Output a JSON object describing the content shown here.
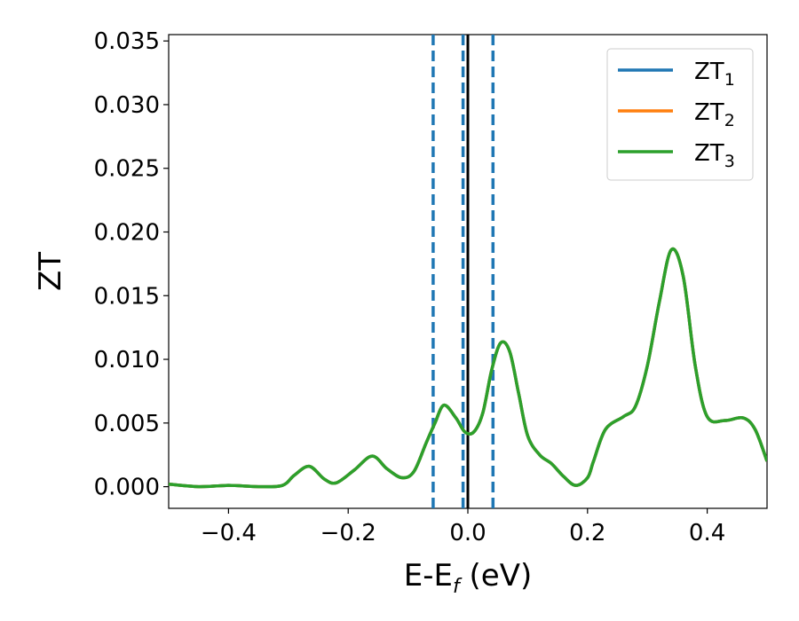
{
  "chart_data": {
    "type": "line",
    "xlabel": "E-E",
    "xlabel_subscript": "f",
    "xlabel_suffix": " (eV)",
    "ylabel": "ZT",
    "xlim": [
      -0.5,
      0.5
    ],
    "ylim": [
      -0.0017,
      0.0355
    ],
    "x_ticks": [
      -0.4,
      -0.2,
      0.0,
      0.2,
      0.4
    ],
    "x_tick_labels": [
      "−0.4",
      "−0.2",
      "0.0",
      "0.2",
      "0.4"
    ],
    "y_ticks": [
      0.0,
      0.005,
      0.01,
      0.015,
      0.02,
      0.025,
      0.03,
      0.035
    ],
    "y_tick_labels": [
      "0.000",
      "0.005",
      "0.010",
      "0.015",
      "0.020",
      "0.025",
      "0.030",
      "0.035"
    ],
    "grid": false,
    "legend_position": "top-right",
    "colors": {
      "zt1": "#1f77b4",
      "zt2": "#ff7f0e",
      "zt3": "#2ca02c",
      "fermi_line": "#000000",
      "dashed": "#1f77b4"
    },
    "legend": [
      {
        "base": "ZT",
        "sub": "1",
        "color": "#1f77b4"
      },
      {
        "base": "ZT",
        "sub": "2",
        "color": "#ff7f0e"
      },
      {
        "base": "ZT",
        "sub": "3",
        "color": "#2ca02c"
      }
    ],
    "vertical_lines": {
      "solid": [
        0.0
      ],
      "dashed": [
        -0.058,
        -0.008,
        0.042
      ]
    },
    "series": [
      {
        "name": "ZT1",
        "color": "#1f77b4",
        "x": [
          -0.5,
          -0.45,
          -0.4,
          -0.35,
          -0.31,
          -0.29,
          -0.265,
          -0.24,
          -0.22,
          -0.19,
          -0.16,
          -0.135,
          -0.11,
          -0.09,
          -0.07,
          -0.055,
          -0.04,
          -0.02,
          -0.005,
          0.01,
          0.025,
          0.04,
          0.055,
          0.07,
          0.085,
          0.1,
          0.12,
          0.14,
          0.16,
          0.18,
          0.2,
          0.21,
          0.23,
          0.26,
          0.28,
          0.3,
          0.32,
          0.34,
          0.36,
          0.38,
          0.4,
          0.43,
          0.46,
          0.48,
          0.5
        ],
        "y": [
          0.0002,
          0.0,
          0.0001,
          0.0,
          0.0001,
          0.0009,
          0.0016,
          0.0006,
          0.0003,
          0.0013,
          0.0024,
          0.0014,
          0.0007,
          0.0012,
          0.0034,
          0.005,
          0.0064,
          0.0054,
          0.0043,
          0.0043,
          0.0058,
          0.0092,
          0.0113,
          0.0106,
          0.0073,
          0.004,
          0.0025,
          0.0018,
          0.0008,
          0.0001,
          0.0007,
          0.002,
          0.0045,
          0.0055,
          0.0063,
          0.0095,
          0.0145,
          0.0186,
          0.0165,
          0.0095,
          0.0055,
          0.0052,
          0.0054,
          0.0045,
          0.002
        ]
      },
      {
        "name": "ZT2",
        "color": "#ff7f0e",
        "x": [
          -0.5,
          -0.45,
          -0.4,
          -0.35,
          -0.31,
          -0.29,
          -0.265,
          -0.24,
          -0.22,
          -0.19,
          -0.16,
          -0.135,
          -0.11,
          -0.09,
          -0.07,
          -0.055,
          -0.04,
          -0.02,
          -0.005,
          0.01,
          0.025,
          0.04,
          0.055,
          0.07,
          0.085,
          0.1,
          0.12,
          0.14,
          0.16,
          0.18,
          0.2,
          0.21,
          0.23,
          0.26,
          0.28,
          0.3,
          0.32,
          0.34,
          0.36,
          0.38,
          0.4,
          0.43,
          0.46,
          0.48,
          0.5
        ],
        "y": [
          0.0002,
          0.0,
          0.0001,
          0.0,
          0.0001,
          0.0009,
          0.0016,
          0.0006,
          0.0003,
          0.0013,
          0.0024,
          0.0014,
          0.0007,
          0.0012,
          0.0034,
          0.005,
          0.0064,
          0.0054,
          0.0043,
          0.0043,
          0.0058,
          0.0092,
          0.0113,
          0.0106,
          0.0073,
          0.004,
          0.0025,
          0.0018,
          0.0008,
          0.0001,
          0.0007,
          0.002,
          0.0045,
          0.0055,
          0.0063,
          0.0095,
          0.0145,
          0.0186,
          0.0165,
          0.0095,
          0.0055,
          0.0052,
          0.0054,
          0.0045,
          0.002
        ]
      },
      {
        "name": "ZT3",
        "color": "#2ca02c",
        "x": [
          -0.5,
          -0.45,
          -0.4,
          -0.35,
          -0.31,
          -0.29,
          -0.265,
          -0.24,
          -0.22,
          -0.19,
          -0.16,
          -0.135,
          -0.11,
          -0.09,
          -0.07,
          -0.055,
          -0.04,
          -0.02,
          -0.005,
          0.01,
          0.025,
          0.04,
          0.055,
          0.07,
          0.085,
          0.1,
          0.12,
          0.14,
          0.16,
          0.18,
          0.2,
          0.21,
          0.23,
          0.26,
          0.28,
          0.3,
          0.32,
          0.34,
          0.36,
          0.38,
          0.4,
          0.43,
          0.46,
          0.48,
          0.5
        ],
        "y": [
          0.0002,
          0.0,
          0.0001,
          0.0,
          0.0001,
          0.0009,
          0.0016,
          0.0006,
          0.0003,
          0.0013,
          0.0024,
          0.0014,
          0.0007,
          0.0012,
          0.0034,
          0.005,
          0.0064,
          0.0054,
          0.0043,
          0.0043,
          0.0058,
          0.0092,
          0.0113,
          0.0106,
          0.0073,
          0.004,
          0.0025,
          0.0018,
          0.0008,
          0.0001,
          0.0007,
          0.002,
          0.0045,
          0.0055,
          0.0063,
          0.0095,
          0.0145,
          0.0186,
          0.0165,
          0.0095,
          0.0055,
          0.0052,
          0.0054,
          0.0045,
          0.002
        ]
      }
    ]
  }
}
